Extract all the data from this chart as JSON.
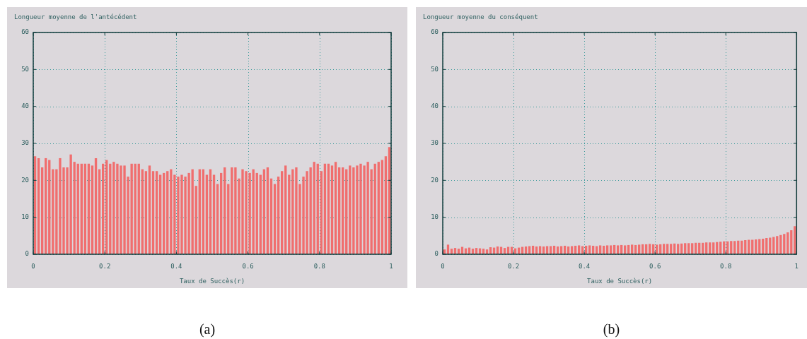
{
  "chart_data": [
    {
      "type": "histogram",
      "title": "Longueur moyenne de l'antécédent",
      "xlabel": "Taux de Succès(r)",
      "annotations": [
        "(a)"
      ],
      "color": "#f06e6e",
      "grid": true,
      "xlim": [
        0,
        1
      ],
      "ylim": [
        0,
        60
      ],
      "xticks": [
        0,
        0.2,
        0.4,
        0.6,
        0.8,
        1
      ],
      "yticks": [
        0,
        10,
        20,
        30,
        40,
        50,
        60
      ],
      "bins": [
        0,
        0.01,
        0.02,
        0.03,
        0.04,
        0.05,
        0.06,
        0.07,
        0.08,
        0.09,
        0.1,
        0.11,
        0.12,
        0.13,
        0.14,
        0.15,
        0.16,
        0.17,
        0.18,
        0.19,
        0.2,
        0.21,
        0.22,
        0.23,
        0.24,
        0.25,
        0.26,
        0.27,
        0.28,
        0.29,
        0.3,
        0.31,
        0.32,
        0.33,
        0.34,
        0.35,
        0.36,
        0.37,
        0.38,
        0.39,
        0.4,
        0.41,
        0.42,
        0.43,
        0.44,
        0.45,
        0.46,
        0.47,
        0.48,
        0.49,
        0.5,
        0.51,
        0.52,
        0.53,
        0.54,
        0.55,
        0.56,
        0.57,
        0.58,
        0.59,
        0.6,
        0.61,
        0.62,
        0.63,
        0.64,
        0.65,
        0.66,
        0.67,
        0.68,
        0.69,
        0.7,
        0.71,
        0.72,
        0.73,
        0.74,
        0.75,
        0.76,
        0.77,
        0.78,
        0.79,
        0.8,
        0.81,
        0.82,
        0.83,
        0.84,
        0.85,
        0.86,
        0.87,
        0.88,
        0.89,
        0.9,
        0.91,
        0.92,
        0.93,
        0.94,
        0.95,
        0.96,
        0.97,
        0.98,
        0.99,
        1
      ],
      "values": [
        26.5,
        26,
        23.5,
        26,
        25.5,
        23,
        23,
        26,
        23.5,
        23.5,
        27,
        25,
        24.5,
        24.5,
        24.5,
        24.5,
        24,
        26,
        23,
        24.5,
        25.5,
        24.5,
        25,
        24.5,
        24,
        24,
        21,
        24.5,
        24.5,
        24.5,
        23,
        22.5,
        24,
        22.5,
        22.5,
        21.5,
        22,
        22.5,
        23,
        21.5,
        21,
        21.5,
        21,
        22,
        23,
        18.5,
        23,
        23,
        21.5,
        23,
        21.5,
        19,
        22,
        23.5,
        19,
        23.5,
        23.5,
        20.5,
        23,
        22.5,
        22,
        23,
        22,
        21.5,
        23,
        23.5,
        20.5,
        19,
        21,
        22.5,
        24,
        21.5,
        23,
        23.5,
        19,
        21,
        22.5,
        23.5,
        25,
        24.5,
        22.5,
        24.5,
        24.5,
        24,
        25,
        23.5,
        23.5,
        23,
        24,
        23.5,
        24,
        24.5,
        24,
        25,
        23,
        24.5,
        25,
        25.5,
        26.5,
        29
      ]
    },
    {
      "type": "histogram",
      "title": "Longueur moyenne du conséquent",
      "xlabel": "Taux de Succès(r)",
      "annotations": [
        "(b)"
      ],
      "color": "#f06e6e",
      "grid": true,
      "xlim": [
        0,
        1
      ],
      "ylim": [
        0,
        60
      ],
      "xticks": [
        0,
        0.2,
        0.4,
        0.6,
        0.8,
        1
      ],
      "yticks": [
        0,
        10,
        20,
        30,
        40,
        50,
        60
      ],
      "bins": [
        0,
        0.01,
        0.02,
        0.03,
        0.04,
        0.05,
        0.06,
        0.07,
        0.08,
        0.09,
        0.1,
        0.11,
        0.12,
        0.13,
        0.14,
        0.15,
        0.16,
        0.17,
        0.18,
        0.19,
        0.2,
        0.21,
        0.22,
        0.23,
        0.24,
        0.25,
        0.26,
        0.27,
        0.28,
        0.29,
        0.3,
        0.31,
        0.32,
        0.33,
        0.34,
        0.35,
        0.36,
        0.37,
        0.38,
        0.39,
        0.4,
        0.41,
        0.42,
        0.43,
        0.44,
        0.45,
        0.46,
        0.47,
        0.48,
        0.49,
        0.5,
        0.51,
        0.52,
        0.53,
        0.54,
        0.55,
        0.56,
        0.57,
        0.58,
        0.59,
        0.6,
        0.61,
        0.62,
        0.63,
        0.64,
        0.65,
        0.66,
        0.67,
        0.68,
        0.69,
        0.7,
        0.71,
        0.72,
        0.73,
        0.74,
        0.75,
        0.76,
        0.77,
        0.78,
        0.79,
        0.8,
        0.81,
        0.82,
        0.83,
        0.84,
        0.85,
        0.86,
        0.87,
        0.88,
        0.89,
        0.9,
        0.91,
        0.92,
        0.93,
        0.94,
        0.95,
        0.96,
        0.97,
        0.98,
        0.99,
        1
      ],
      "values": [
        1.3,
        2.6,
        1.5,
        1.7,
        1.5,
        2,
        1.6,
        1.8,
        1.5,
        1.7,
        1.6,
        1.5,
        1.3,
        1.9,
        1.8,
        2.1,
        2,
        1.7,
        2,
        2,
        1.6,
        1.8,
        2,
        2.1,
        2.2,
        2.3,
        2.1,
        2.2,
        2.1,
        2.2,
        2.2,
        2.3,
        2.1,
        2.2,
        2.3,
        2.1,
        2.2,
        2.3,
        2.4,
        2.2,
        2.3,
        2.4,
        2.3,
        2.2,
        2.4,
        2.3,
        2.4,
        2.4,
        2.5,
        2.4,
        2.5,
        2.4,
        2.5,
        2.6,
        2.5,
        2.6,
        2.7,
        2.7,
        2.8,
        2.7,
        2.6,
        2.7,
        2.8,
        2.8,
        2.8,
        2.9,
        2.8,
        2.9,
        3,
        3,
        3,
        3.1,
        3.1,
        3.1,
        3.2,
        3.2,
        3.2,
        3.3,
        3.4,
        3.5,
        3.5,
        3.6,
        3.6,
        3.7,
        3.7,
        3.8,
        3.9,
        3.9,
        4,
        4.1,
        4.2,
        4.4,
        4.5,
        4.7,
        4.9,
        5.2,
        5.5,
        5.9,
        6.5,
        7.6
      ]
    }
  ]
}
